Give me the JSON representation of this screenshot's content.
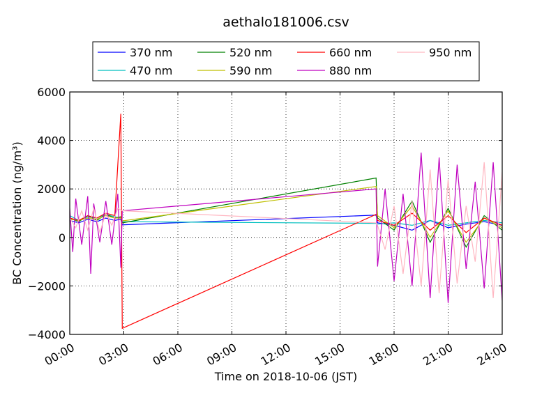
{
  "chart_data": {
    "type": "line",
    "title": "aethalo181006.csv",
    "xlabel": "Time on 2018-10-06 (JST)",
    "ylabel": "BC Concentration (ng/m³)",
    "xlim": [
      "00:00",
      "24:00"
    ],
    "ylim": [
      -4000,
      6000
    ],
    "x_ticks": [
      "00:00",
      "03:00",
      "06:00",
      "09:00",
      "12:00",
      "15:00",
      "18:00",
      "21:00",
      "24:00"
    ],
    "y_ticks": [
      -4000,
      -2000,
      0,
      2000,
      4000,
      6000
    ],
    "grid": true,
    "legend_placement": "above plot, 4 columns",
    "series": [
      {
        "name": "370 nm",
        "color": "#0000ff",
        "x": [
          "00:00",
          "00:30",
          "01:00",
          "01:30",
          "02:00",
          "02:30",
          "02:50",
          "02:55",
          "17:00",
          "17:05",
          "18:00",
          "19:00",
          "20:00",
          "21:00",
          "22:00",
          "23:00",
          "24:00"
        ],
        "values": [
          700,
          600,
          750,
          650,
          800,
          700,
          750,
          520,
          920,
          600,
          500,
          300,
          700,
          400,
          550,
          650,
          500
        ]
      },
      {
        "name": "470 nm",
        "color": "#00bfbf",
        "x": [
          "00:00",
          "00:30",
          "01:00",
          "01:30",
          "02:00",
          "02:30",
          "02:50",
          "02:55",
          "17:00",
          "17:05",
          "18:00",
          "19:00",
          "20:00",
          "21:00",
          "22:00",
          "23:00",
          "24:00"
        ],
        "values": [
          900,
          700,
          850,
          800,
          950,
          850,
          800,
          650,
          580,
          550,
          600,
          500,
          700,
          500,
          600,
          700,
          600
        ]
      },
      {
        "name": "520 nm",
        "color": "#008000",
        "x": [
          "00:00",
          "00:30",
          "01:00",
          "01:30",
          "02:00",
          "02:30",
          "02:50",
          "02:55",
          "17:00",
          "17:05",
          "18:00",
          "19:00",
          "20:00",
          "21:00",
          "22:00",
          "23:00",
          "24:00"
        ],
        "values": [
          800,
          650,
          900,
          700,
          950,
          800,
          850,
          600,
          2450,
          800,
          300,
          1500,
          -200,
          1200,
          -400,
          900,
          300
        ]
      },
      {
        "name": "590 nm",
        "color": "#bfbf00",
        "x": [
          "00:00",
          "00:30",
          "01:00",
          "01:30",
          "02:00",
          "02:30",
          "02:50",
          "02:55",
          "17:00",
          "17:05",
          "18:00",
          "19:00",
          "20:00",
          "21:00",
          "22:00",
          "23:00",
          "24:00"
        ],
        "values": [
          750,
          700,
          800,
          750,
          900,
          800,
          800,
          680,
          2100,
          900,
          400,
          1300,
          0,
          1100,
          -200,
          800,
          400
        ]
      },
      {
        "name": "660 nm",
        "color": "#ff0000",
        "x": [
          "00:00",
          "00:30",
          "01:00",
          "01:30",
          "02:00",
          "02:30",
          "02:50",
          "02:55",
          "17:00",
          "17:05",
          "18:00",
          "19:00",
          "20:00",
          "21:00",
          "22:00",
          "23:00",
          "24:00"
        ],
        "values": [
          800,
          700,
          900,
          800,
          1000,
          900,
          5100,
          -3750,
          950,
          700,
          500,
          1000,
          300,
          900,
          200,
          800,
          500
        ]
      },
      {
        "name": "880 nm",
        "color": "#bf00bf",
        "x": [
          "00:00",
          "00:10",
          "00:20",
          "00:40",
          "01:00",
          "01:10",
          "01:20",
          "01:40",
          "02:00",
          "02:20",
          "02:40",
          "02:50",
          "02:55",
          "17:00",
          "17:05",
          "17:30",
          "18:00",
          "18:30",
          "19:00",
          "19:30",
          "20:00",
          "20:30",
          "21:00",
          "21:30",
          "22:00",
          "22:30",
          "23:00",
          "23:30",
          "24:00"
        ],
        "values": [
          1200,
          -600,
          1600,
          -300,
          1700,
          -1500,
          1400,
          -200,
          1500,
          -300,
          1800,
          -1250,
          1100,
          2000,
          -1200,
          2000,
          -1800,
          1800,
          -2000,
          3500,
          -2500,
          3300,
          -2700,
          3000,
          -1300,
          2300,
          -2100,
          3100,
          -2600
        ]
      },
      {
        "name": "950 nm",
        "color": "#ffb6c1",
        "x": [
          "00:00",
          "00:20",
          "00:40",
          "01:00",
          "01:20",
          "01:40",
          "02:00",
          "02:20",
          "02:40",
          "02:55",
          "17:00",
          "17:05",
          "17:30",
          "18:00",
          "18:30",
          "19:00",
          "19:30",
          "20:00",
          "20:30",
          "21:00",
          "21:30",
          "22:00",
          "22:30",
          "23:00",
          "23:30",
          "24:00"
        ],
        "values": [
          800,
          400,
          1100,
          300,
          1200,
          200,
          1000,
          500,
          1200,
          1100,
          600,
          500,
          -500,
          1300,
          -1500,
          1500,
          -2000,
          2800,
          -2300,
          2400,
          -1900,
          1300,
          -1000,
          3100,
          -2500,
          2700
        ]
      }
    ]
  }
}
